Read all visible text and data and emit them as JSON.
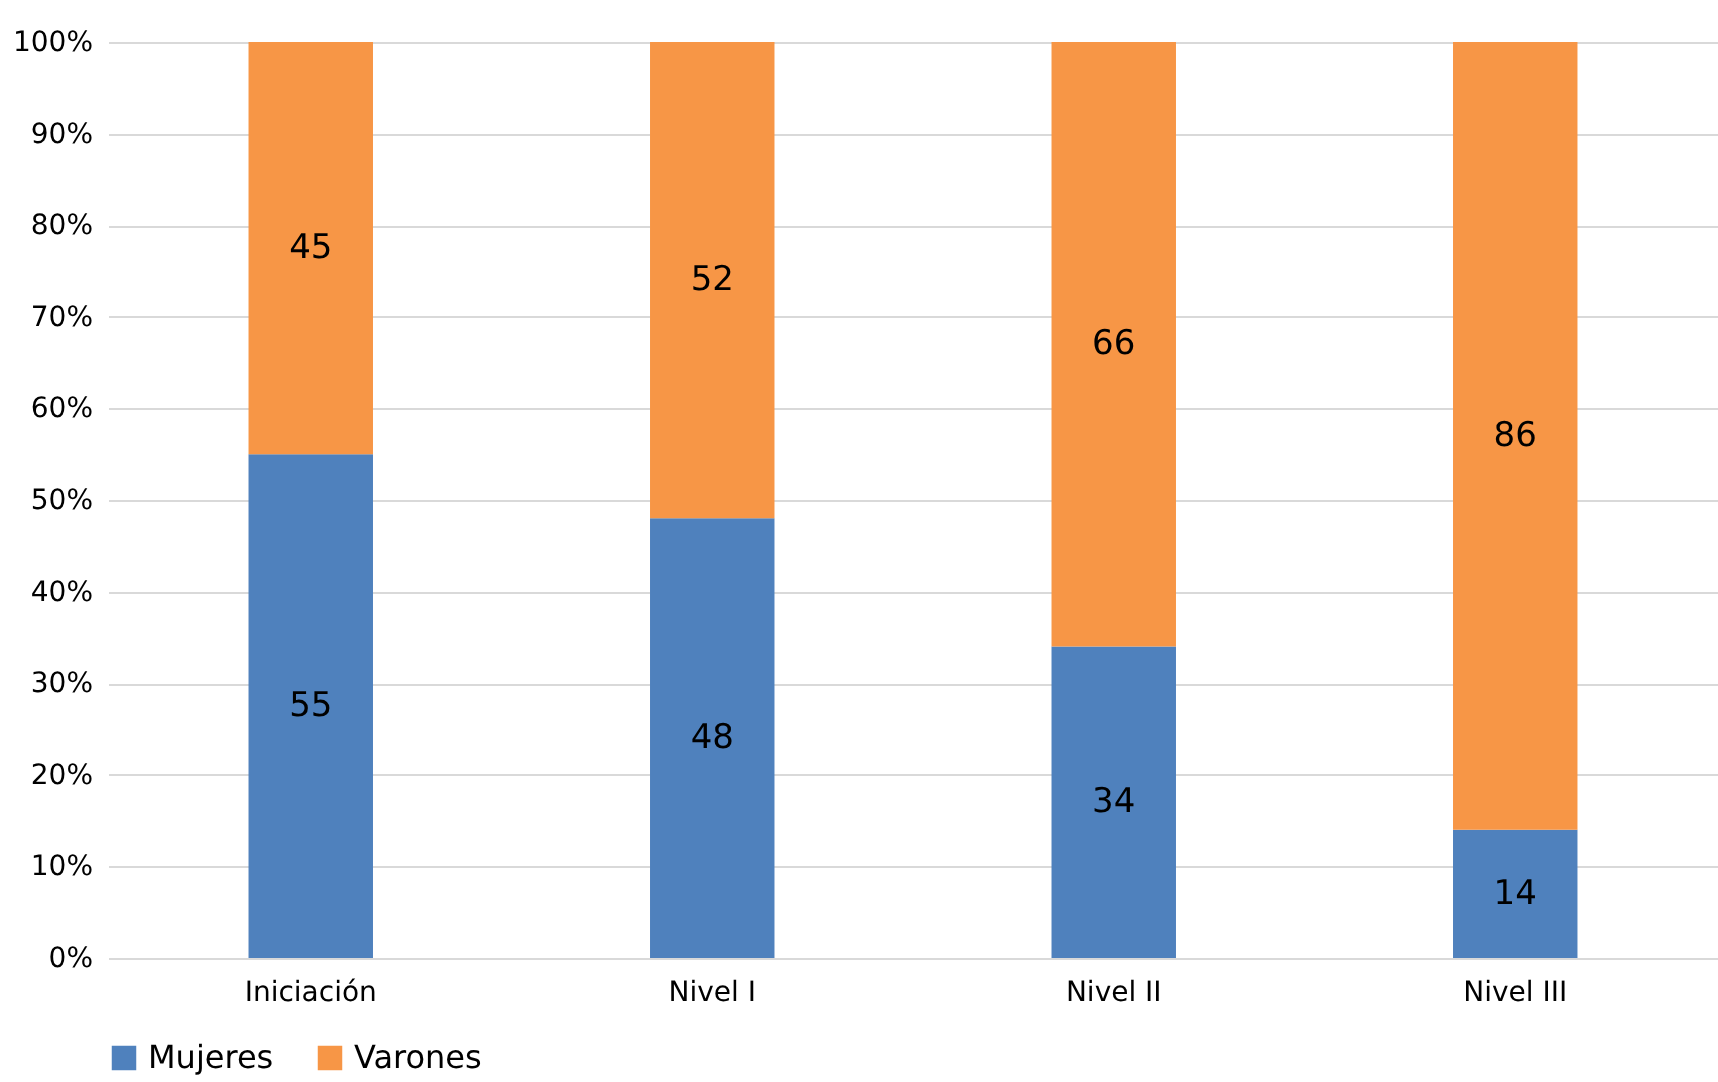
{
  "chart_data": {
    "type": "bar",
    "stacked": true,
    "categories": [
      "Iniciación",
      "Nivel I",
      "Nivel II",
      "Nivel III"
    ],
    "series": [
      {
        "name": "Mujeres",
        "color": "#4f81bd",
        "values": [
          55,
          48,
          34,
          14
        ]
      },
      {
        "name": "Varones",
        "color": "#f79646",
        "values": [
          45,
          52,
          66,
          86
        ]
      }
    ],
    "ylim": [
      0,
      100
    ],
    "yticks": [
      {
        "value": 0,
        "label": "0%"
      },
      {
        "value": 10,
        "label": "10%"
      },
      {
        "value": 20,
        "label": "20%"
      },
      {
        "value": 30,
        "label": "30%"
      },
      {
        "value": 40,
        "label": "40%"
      },
      {
        "value": 50,
        "label": "50%"
      },
      {
        "value": 60,
        "label": "60%"
      },
      {
        "value": 70,
        "label": "70%"
      },
      {
        "value": 80,
        "label": "80%"
      },
      {
        "value": 90,
        "label": "90%"
      },
      {
        "value": 100,
        "label": "100%"
      }
    ],
    "grid": "y",
    "legend": "bottom",
    "data_labels": true
  }
}
